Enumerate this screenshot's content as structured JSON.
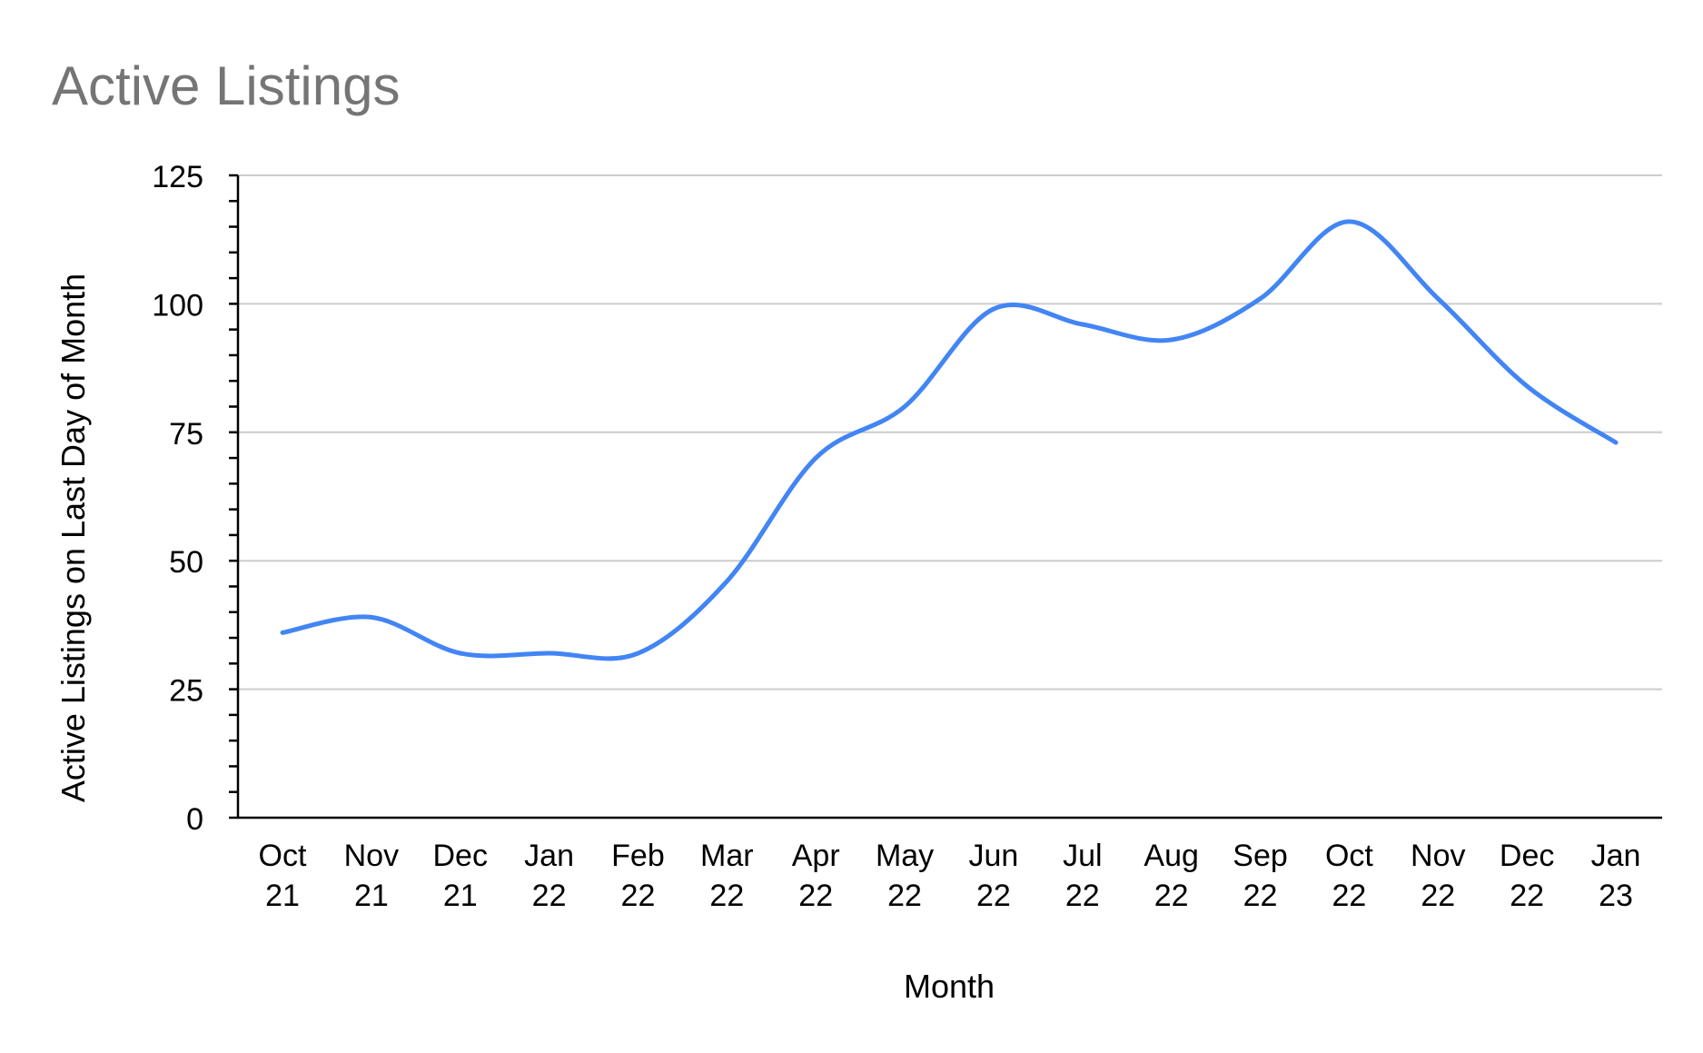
{
  "chart_data": {
    "type": "line",
    "title": "Active Listings",
    "xlabel": "Month",
    "ylabel": "Active Listings on Last Day of Month",
    "categories": [
      [
        "Oct",
        "21"
      ],
      [
        "Nov",
        "21"
      ],
      [
        "Dec",
        "21"
      ],
      [
        "Jan",
        "22"
      ],
      [
        "Feb",
        "22"
      ],
      [
        "Mar",
        "22"
      ],
      [
        "Apr",
        "22"
      ],
      [
        "May",
        "22"
      ],
      [
        "Jun",
        "22"
      ],
      [
        "Jul",
        "22"
      ],
      [
        "Aug",
        "22"
      ],
      [
        "Sep",
        "22"
      ],
      [
        "Oct",
        "22"
      ],
      [
        "Nov",
        "22"
      ],
      [
        "Dec",
        "22"
      ],
      [
        "Jan",
        "23"
      ]
    ],
    "series": [
      {
        "values": [
          36,
          39,
          32,
          32,
          32,
          46,
          70,
          80,
          99,
          96,
          93,
          101,
          116,
          101,
          84,
          73
        ],
        "color": "#4285f4"
      }
    ],
    "ylim": [
      0,
      125
    ],
    "yticks": [
      0,
      25,
      50,
      75,
      100,
      125
    ],
    "grid": true,
    "smooth": true
  }
}
